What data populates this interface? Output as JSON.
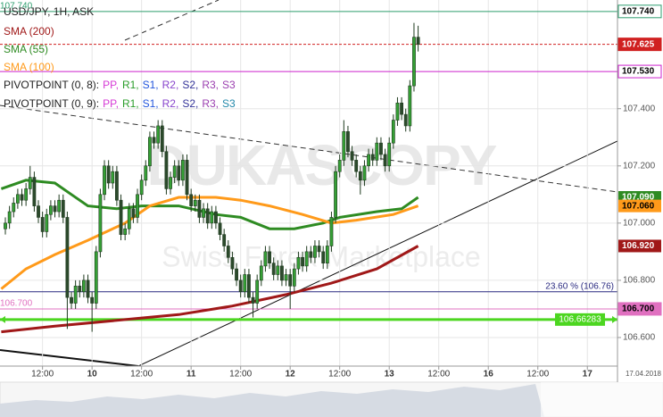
{
  "chart_data": {
    "type": "candlestick",
    "title": "USD/JPY, 1H, ASK",
    "grid": true,
    "up_color": "#35a035",
    "down_color": "#2c4a2c",
    "xlim": [
      1.7,
      151.3
    ],
    "ylim": [
      106.5,
      107.78
    ],
    "xticks": [
      {
        "value": 12,
        "label": "12:00"
      },
      {
        "value": 24,
        "label": "10"
      },
      {
        "value": 36,
        "label": "12:00"
      },
      {
        "value": 48,
        "label": "11"
      },
      {
        "value": 60,
        "label": "12:00"
      },
      {
        "value": 72,
        "label": "12"
      },
      {
        "value": 84,
        "label": "12:00"
      },
      {
        "value": 96,
        "label": "13"
      },
      {
        "value": 108,
        "label": "12:00"
      },
      {
        "value": 120,
        "label": "16"
      },
      {
        "value": 132,
        "label": "12:00"
      },
      {
        "value": 144,
        "label": "17"
      }
    ],
    "yticks": [
      {
        "value": 106.6,
        "label": "106.600"
      },
      {
        "value": 106.8,
        "label": "106.800"
      },
      {
        "value": 107.0,
        "label": "107.000"
      },
      {
        "value": 107.2,
        "label": "107.200"
      },
      {
        "value": 107.4,
        "label": "107.400"
      }
    ],
    "date_label": "17.04.2018",
    "watermark": [
      "DUKASCOPY",
      "Swiss Forex Marketplace"
    ],
    "x": [
      3,
      4,
      5,
      6,
      7,
      8,
      9,
      10,
      11,
      12,
      13,
      14,
      15,
      16,
      17,
      18,
      19,
      20,
      21,
      22,
      23,
      24,
      25,
      26,
      27,
      28,
      29,
      30,
      31,
      32,
      33,
      34,
      35,
      36,
      37,
      38,
      39,
      40,
      41,
      42,
      43,
      44,
      45,
      46,
      47,
      48,
      49,
      50,
      51,
      52,
      53,
      54,
      55,
      56,
      57,
      58,
      59,
      60,
      61,
      62,
      63,
      64,
      65,
      66,
      67,
      68,
      69,
      70,
      71,
      72,
      73,
      74,
      75,
      76,
      77,
      78,
      79,
      80,
      81,
      82,
      83,
      84,
      85,
      86,
      87,
      88,
      89,
      90,
      91,
      92,
      93,
      94,
      95,
      96,
      97,
      98,
      99,
      100,
      101,
      102,
      103
    ],
    "open": [
      106.98,
      107.0,
      107.04,
      107.07,
      107.1,
      107.08,
      107.12,
      107.16,
      107.06,
      107.02,
      106.97,
      107.03,
      107.06,
      107.04,
      107.08,
      107.02,
      106.74,
      106.72,
      106.78,
      106.76,
      106.8,
      106.74,
      106.72,
      106.9,
      107.1,
      107.2,
      107.14,
      107.18,
      107.08,
      106.96,
      106.98,
      107.05,
      107.02,
      107.1,
      107.15,
      107.2,
      107.3,
      107.28,
      107.34,
      107.25,
      107.12,
      107.16,
      107.2,
      107.15,
      107.22,
      107.1,
      107.06,
      107.08,
      107.02,
      107.05,
      107.0,
      107.04,
      107.0,
      106.96,
      106.92,
      106.88,
      106.84,
      106.8,
      106.76,
      106.82,
      106.74,
      106.72,
      106.8,
      106.85,
      106.9,
      106.86,
      106.82,
      106.85,
      106.8,
      106.82,
      106.78,
      106.84,
      106.88,
      106.85,
      106.9,
      106.88,
      106.92,
      106.9,
      106.86,
      106.92,
      107.02,
      107.18,
      107.22,
      107.32,
      107.25,
      107.22,
      107.18,
      107.15,
      107.2,
      107.24,
      107.22,
      107.28,
      107.24,
      107.2,
      107.28,
      107.36,
      107.42,
      107.38,
      107.34,
      107.48,
      107.65
    ],
    "high": [
      107.02,
      107.06,
      107.09,
      107.12,
      107.12,
      107.14,
      107.2,
      107.18,
      107.08,
      107.04,
      107.05,
      107.08,
      107.08,
      107.1,
      107.1,
      107.04,
      106.76,
      106.8,
      106.8,
      106.82,
      106.82,
      106.76,
      106.92,
      107.12,
      107.22,
      107.22,
      107.2,
      107.2,
      107.1,
      107.0,
      107.07,
      107.07,
      107.12,
      107.17,
      107.22,
      107.32,
      107.32,
      107.36,
      107.36,
      107.27,
      107.18,
      107.22,
      107.22,
      107.24,
      107.24,
      107.12,
      107.1,
      107.1,
      107.07,
      107.07,
      107.06,
      107.06,
      107.02,
      106.98,
      106.94,
      106.9,
      106.86,
      106.82,
      106.84,
      106.84,
      106.76,
      106.82,
      106.87,
      106.92,
      106.92,
      106.88,
      106.87,
      106.87,
      106.84,
      106.84,
      106.86,
      106.9,
      106.9,
      106.92,
      106.92,
      106.94,
      106.94,
      106.92,
      106.94,
      107.04,
      107.2,
      107.24,
      107.36,
      107.34,
      107.27,
      107.24,
      107.2,
      107.22,
      107.26,
      107.26,
      107.3,
      107.3,
      107.26,
      107.3,
      107.38,
      107.44,
      107.44,
      107.4,
      107.5,
      107.7,
      107.69
    ],
    "low": [
      106.96,
      106.98,
      107.02,
      107.05,
      107.06,
      107.06,
      107.1,
      107.04,
      107.0,
      106.95,
      106.95,
      107.01,
      107.02,
      107.02,
      107.0,
      106.63,
      106.7,
      106.7,
      106.74,
      106.74,
      106.72,
      106.62,
      106.7,
      106.88,
      107.08,
      107.12,
      107.12,
      107.06,
      106.94,
      106.94,
      106.96,
      107.0,
      107.0,
      107.08,
      107.13,
      107.18,
      107.26,
      107.26,
      107.23,
      107.1,
      107.1,
      107.14,
      107.13,
      107.13,
      107.08,
      107.04,
      107.04,
      107.0,
      107.0,
      106.98,
      106.98,
      106.98,
      106.94,
      106.9,
      106.86,
      106.82,
      106.78,
      106.74,
      106.74,
      106.72,
      106.67,
      106.7,
      106.78,
      106.83,
      106.84,
      106.8,
      106.8,
      106.78,
      106.78,
      106.7,
      106.76,
      106.82,
      106.83,
      106.83,
      106.86,
      106.86,
      106.88,
      106.84,
      106.84,
      106.9,
      107.0,
      107.16,
      107.2,
      107.23,
      107.2,
      107.16,
      107.1,
      107.13,
      107.18,
      107.2,
      107.2,
      107.22,
      107.18,
      107.18,
      107.26,
      107.34,
      107.36,
      107.32,
      107.32,
      107.46,
      107.6
    ],
    "close": [
      107.0,
      107.04,
      107.07,
      107.1,
      107.08,
      107.12,
      107.16,
      107.06,
      107.02,
      106.97,
      107.03,
      107.06,
      107.04,
      107.08,
      107.02,
      106.74,
      106.72,
      106.78,
      106.76,
      106.8,
      106.74,
      106.72,
      106.9,
      107.1,
      107.2,
      107.14,
      107.18,
      107.08,
      106.96,
      106.98,
      107.05,
      107.02,
      107.1,
      107.15,
      107.2,
      107.3,
      107.28,
      107.34,
      107.25,
      107.12,
      107.16,
      107.2,
      107.15,
      107.22,
      107.1,
      107.06,
      107.08,
      107.02,
      107.05,
      107.0,
      107.04,
      107.0,
      106.96,
      106.92,
      106.88,
      106.84,
      106.8,
      106.76,
      106.82,
      106.74,
      106.72,
      106.8,
      106.85,
      106.9,
      106.86,
      106.82,
      106.85,
      106.8,
      106.82,
      106.78,
      106.84,
      106.88,
      106.85,
      106.9,
      106.88,
      106.92,
      106.9,
      106.86,
      106.92,
      107.02,
      107.18,
      107.22,
      107.32,
      107.25,
      107.22,
      107.18,
      107.15,
      107.2,
      107.24,
      107.22,
      107.28,
      107.24,
      107.2,
      107.28,
      107.36,
      107.42,
      107.38,
      107.34,
      107.48,
      107.65,
      107.625
    ],
    "series": [
      {
        "name": "SMA (200)",
        "color": "#a01818",
        "x": [
          2,
          15,
          30,
          45,
          58,
          71,
          82,
          93,
          103
        ],
        "values": [
          106.62,
          106.64,
          106.66,
          106.68,
          106.71,
          106.75,
          106.79,
          106.84,
          106.92
        ]
      },
      {
        "name": "SMA (55)",
        "color": "#2e8b22",
        "x": [
          2,
          8,
          15,
          19,
          23,
          30,
          36,
          45,
          54,
          60,
          67,
          73,
          80,
          84,
          93,
          99,
          103
        ],
        "values": [
          107.12,
          107.15,
          107.14,
          107.1,
          107.06,
          107.05,
          107.06,
          107.06,
          107.03,
          107.02,
          106.98,
          106.98,
          107.0,
          107.02,
          107.04,
          107.05,
          107.09
        ]
      },
      {
        "name": "SMA (100)",
        "color": "#ff9a1a",
        "x": [
          2,
          8,
          15,
          23,
          32,
          38,
          45,
          54,
          60,
          67,
          75,
          82,
          88,
          97,
          103
        ],
        "values": [
          106.77,
          106.84,
          106.89,
          106.94,
          107.0,
          107.06,
          107.09,
          107.09,
          107.08,
          107.06,
          107.03,
          107.0,
          107.01,
          107.03,
          107.06
        ]
      }
    ],
    "pivots": [
      {
        "name": "PIVOTPOINT (0, 8):",
        "items": [
          {
            "text": "PP,",
            "color": "#d63ad6"
          },
          {
            "text": "R1,",
            "color": "#2a9d2a"
          },
          {
            "text": "S1,",
            "color": "#2255dd"
          },
          {
            "text": "R2,",
            "color": "#8844cc"
          },
          {
            "text": "S2,",
            "color": "#333399"
          },
          {
            "text": "R3,",
            "color": "#9b3fb0"
          },
          {
            "text": "S3",
            "color": "#9b3fb0"
          }
        ]
      },
      {
        "name": "PIVOTPOINT (0, 9):",
        "items": [
          {
            "text": "PP,",
            "color": "#d63ad6"
          },
          {
            "text": "R1,",
            "color": "#2a9d2a"
          },
          {
            "text": "S1,",
            "color": "#2255dd"
          },
          {
            "text": "R2,",
            "color": "#8844cc"
          },
          {
            "text": "S2,",
            "color": "#333399"
          },
          {
            "text": "R3,",
            "color": "#9b3fb0"
          },
          {
            "text": "S3",
            "color": "#2288aa"
          }
        ]
      }
    ],
    "levels": [
      {
        "value": 107.74,
        "label": "107.740",
        "color": "#2e9e6e",
        "style": "solid",
        "box": "outline",
        "text_color": "#000000",
        "left_label": true
      },
      {
        "value": 107.625,
        "label": "107.625",
        "color": "#d02020",
        "style": "dashed",
        "box": "fill",
        "text_color": "#ffffff",
        "left_label": false
      },
      {
        "value": 107.53,
        "label": "107.530",
        "color": "#cc22cc",
        "style": "solid",
        "box": "outline",
        "text_color": "#000000",
        "left_label": false
      },
      {
        "value": 106.76,
        "label": "23.60 % (106.76)",
        "color": "#2a2a80",
        "style": "solid",
        "box": "inline",
        "text_color": "#2a2a80",
        "left_label": false
      },
      {
        "value": 106.7,
        "label": "106.700",
        "color": "#e070c0",
        "style": "solid",
        "box": "fill",
        "text_color": "#000000",
        "left_label": true
      },
      {
        "value": 106.66283,
        "label": "106.66283",
        "color": "#4cd620",
        "style": "thick",
        "box": "center",
        "text_color": "#ffffff",
        "left_label": false
      }
    ],
    "price_labels": [
      {
        "value": 107.09,
        "label": "107.090",
        "color": "#2e8b22",
        "text_color": "#ffffff"
      },
      {
        "value": 107.06,
        "label": "107.060",
        "color": "#ff9a1a",
        "text_color": "#000000"
      },
      {
        "value": 106.92,
        "label": "106.920",
        "color": "#a01818",
        "text_color": "#ffffff"
      }
    ]
  }
}
